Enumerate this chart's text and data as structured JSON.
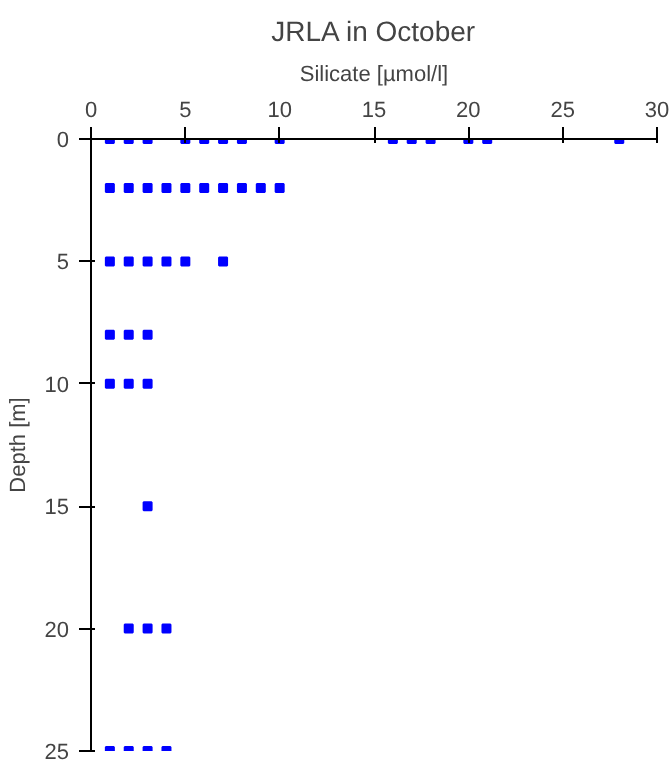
{
  "chart_data": {
    "type": "scatter",
    "title": "JRLA in October",
    "xlabel": "Silicate [µmol/l]",
    "ylabel": "Depth [m]",
    "series": [
      {
        "color": "#0000ff",
        "x": [
          1,
          2,
          3,
          5,
          6,
          7,
          8,
          10,
          16,
          17,
          18,
          20,
          21,
          28,
          1,
          2,
          3,
          4,
          5,
          6,
          7,
          8,
          9,
          10,
          1,
          2,
          3,
          4,
          5,
          7,
          1,
          2,
          3,
          1,
          2,
          3,
          3,
          2,
          3,
          4,
          1,
          2,
          3,
          4
        ],
        "values": [
          0,
          0,
          0,
          0,
          0,
          0,
          0,
          0,
          0,
          0,
          0,
          0,
          0,
          0,
          2,
          2,
          2,
          2,
          2,
          2,
          2,
          2,
          2,
          2,
          5,
          5,
          5,
          5,
          5,
          5,
          8,
          8,
          8,
          10,
          10,
          10,
          15,
          20,
          20,
          20,
          25,
          25,
          25,
          25
        ]
      }
    ],
    "xlim": [
      0,
      30
    ],
    "xticks": [
      0,
      5,
      10,
      15,
      20,
      25,
      30
    ],
    "ylim": [
      25,
      0
    ],
    "yticks": [
      0,
      5,
      10,
      15,
      20,
      25
    ],
    "marker": "square"
  }
}
